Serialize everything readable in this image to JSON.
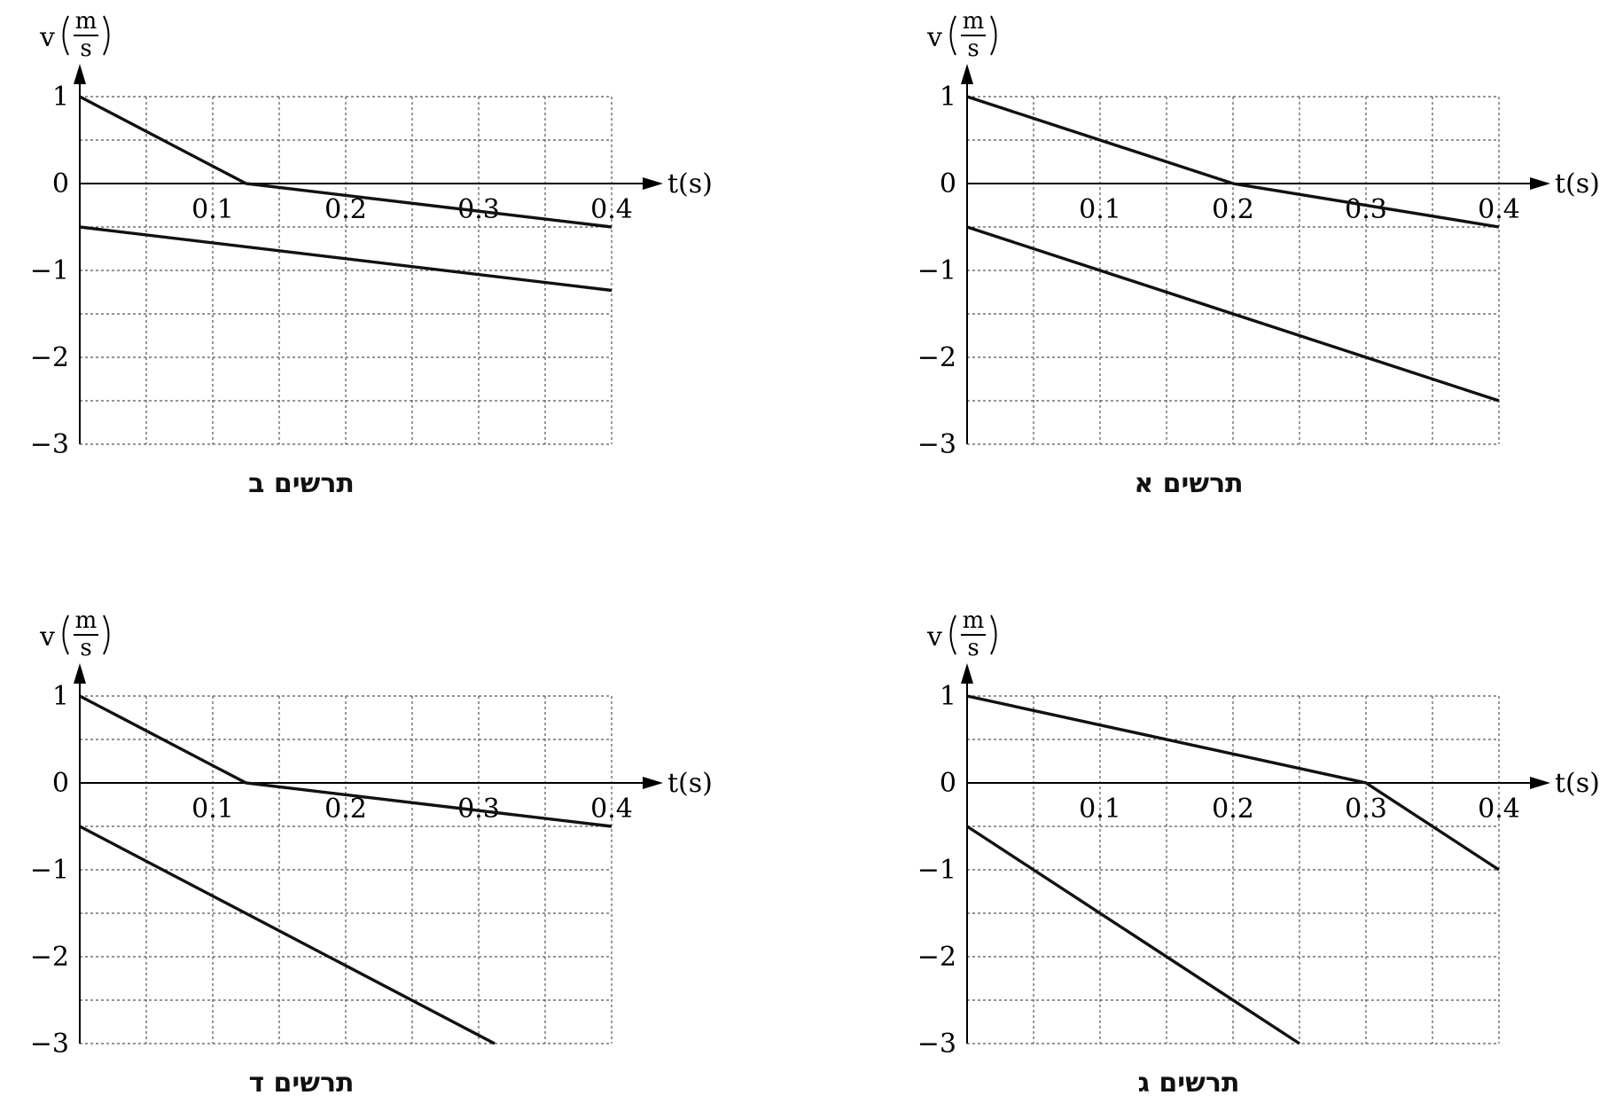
{
  "chart_data": [
    {
      "type": "line",
      "title": "תרשים א",
      "xlabel": "t(s)",
      "ylabel": "v",
      "ylabel_unit_num": "m",
      "ylabel_unit_den": "s",
      "xlim": [
        0,
        0.4
      ],
      "ylim": [
        -3,
        1
      ],
      "xticks": [
        0.1,
        0.2,
        0.3,
        0.4
      ],
      "xtick_labels": [
        "0.1",
        "0.2",
        "0.3",
        "0.4"
      ],
      "yticks": [
        1,
        0,
        -1,
        -2,
        -3
      ],
      "ytick_labels": [
        "1",
        "0",
        "−1",
        "−2",
        "−3"
      ],
      "grid": true,
      "series": [
        {
          "x": [
            0,
            0.2,
            0.4
          ],
          "y": [
            1,
            0,
            -0.5
          ]
        },
        {
          "x": [
            0,
            0.4
          ],
          "y": [
            -0.5,
            -2.5
          ]
        }
      ]
    },
    {
      "type": "line",
      "title": "תרשים ב",
      "xlabel": "t(s)",
      "ylabel": "v",
      "ylabel_unit_num": "m",
      "ylabel_unit_den": "s",
      "xlim": [
        0,
        0.4
      ],
      "ylim": [
        -3,
        1
      ],
      "xticks": [
        0.1,
        0.2,
        0.3,
        0.4
      ],
      "xtick_labels": [
        "0.1",
        "0.2",
        "0.3",
        "0.4"
      ],
      "yticks": [
        1,
        0,
        -1,
        -2,
        -3
      ],
      "ytick_labels": [
        "1",
        "0",
        "−1",
        "−2",
        "−3"
      ],
      "grid": true,
      "series": [
        {
          "x": [
            0,
            0.125,
            0.4
          ],
          "y": [
            1,
            0,
            -0.5
          ]
        },
        {
          "x": [
            0,
            0.4
          ],
          "y": [
            -0.5,
            -1.23
          ]
        }
      ]
    },
    {
      "type": "line",
      "title": "תרשים ג",
      "xlabel": "t(s)",
      "ylabel": "v",
      "ylabel_unit_num": "m",
      "ylabel_unit_den": "s",
      "xlim": [
        0,
        0.4
      ],
      "ylim": [
        -3,
        1
      ],
      "xticks": [
        0.1,
        0.2,
        0.3,
        0.4
      ],
      "xtick_labels": [
        "0.1",
        "0.2",
        "0.3",
        "0.4"
      ],
      "yticks": [
        1,
        0,
        -1,
        -2,
        -3
      ],
      "ytick_labels": [
        "1",
        "0",
        "−1",
        "−2",
        "−3"
      ],
      "grid": true,
      "series": [
        {
          "x": [
            0,
            0.3,
            0.4
          ],
          "y": [
            1,
            0,
            -1
          ]
        },
        {
          "x": [
            0,
            0.25
          ],
          "y": [
            -0.5,
            -3
          ]
        }
      ]
    },
    {
      "type": "line",
      "title": "תרשים ד",
      "xlabel": "t(s)",
      "ylabel": "v",
      "ylabel_unit_num": "m",
      "ylabel_unit_den": "s",
      "xlim": [
        0,
        0.4
      ],
      "ylim": [
        -3,
        1
      ],
      "xticks": [
        0.1,
        0.2,
        0.3,
        0.4
      ],
      "xtick_labels": [
        "0.1",
        "0.2",
        "0.3",
        "0.4"
      ],
      "yticks": [
        1,
        0,
        -1,
        -2,
        -3
      ],
      "ytick_labels": [
        "1",
        "0",
        "−1",
        "−2",
        "−3"
      ],
      "grid": true,
      "series": [
        {
          "x": [
            0,
            0.125,
            0.4
          ],
          "y": [
            1,
            0,
            -0.5
          ]
        },
        {
          "x": [
            0,
            0.312
          ],
          "y": [
            -0.5,
            -3
          ]
        }
      ]
    }
  ]
}
